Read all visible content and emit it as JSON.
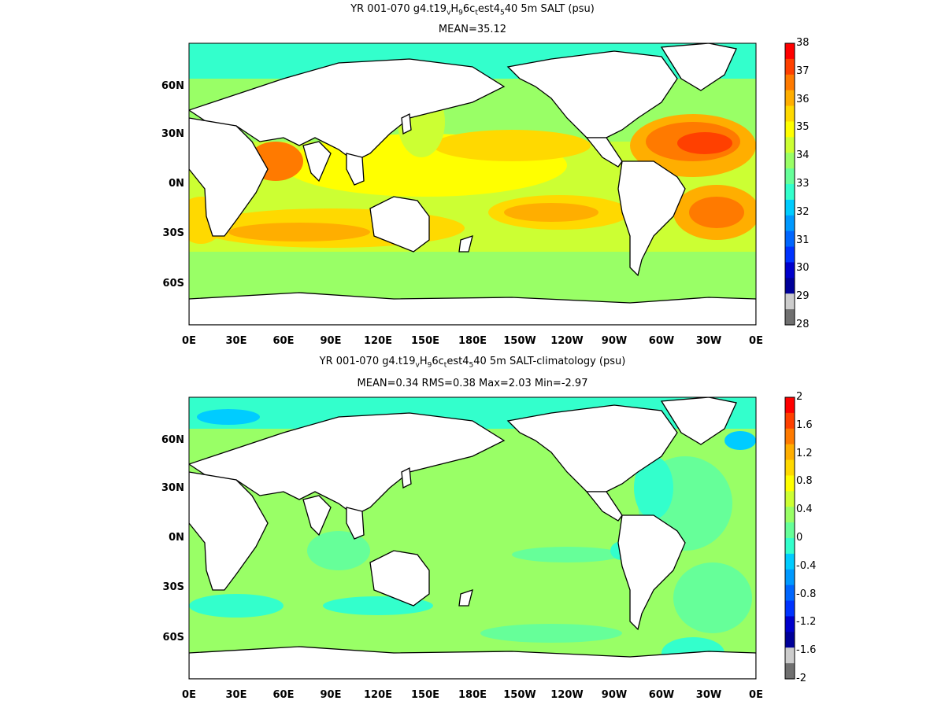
{
  "panels": [
    {
      "title_parts": [
        "YR 001-070 g4.t19",
        "v",
        "H",
        "9",
        "6c",
        "t",
        "est4",
        "5",
        "40 5m SALT (psu)"
      ],
      "subtitle": "MEAN=35.12",
      "colorbar_ticks": [
        "38",
        "37",
        "36",
        "35",
        "34",
        "33",
        "32",
        "31",
        "30",
        "29",
        "28"
      ]
    },
    {
      "title_parts": [
        "YR 001-070 g4.t19",
        "v",
        "H",
        "9",
        "6c",
        "t",
        "est4",
        "5",
        "40 5m SALT-climatology (psu)"
      ],
      "subtitle": "MEAN=0.34   RMS=0.38   Max=2.03   Min=-2.97",
      "colorbar_ticks": [
        "2",
        "1.6",
        "1.2",
        "0.8",
        "0.4",
        "0",
        "-0.4",
        "-0.8",
        "-1.2",
        "-1.6",
        "-2"
      ]
    }
  ],
  "x_ticks": [
    "0E",
    "30E",
    "60E",
    "90E",
    "120E",
    "150E",
    "180E",
    "150W",
    "120W",
    "90W",
    "60W",
    "30W",
    "0E"
  ],
  "y_ticks": [
    "60N",
    "30N",
    "0N",
    "30S",
    "60S"
  ],
  "colors": {
    "salt_scale": [
      "#ff0000",
      "#ff4000",
      "#ff7a00",
      "#ffae00",
      "#ffd900",
      "#ffff00",
      "#ccff33",
      "#99ff66",
      "#66ff99",
      "#33ffcc",
      "#00ccff",
      "#0099ff",
      "#0066ff",
      "#0033ff",
      "#0000cc",
      "#000099",
      "#cccccc",
      "#707070"
    ],
    "land": "#ffffff",
    "coast": "#000000"
  }
}
